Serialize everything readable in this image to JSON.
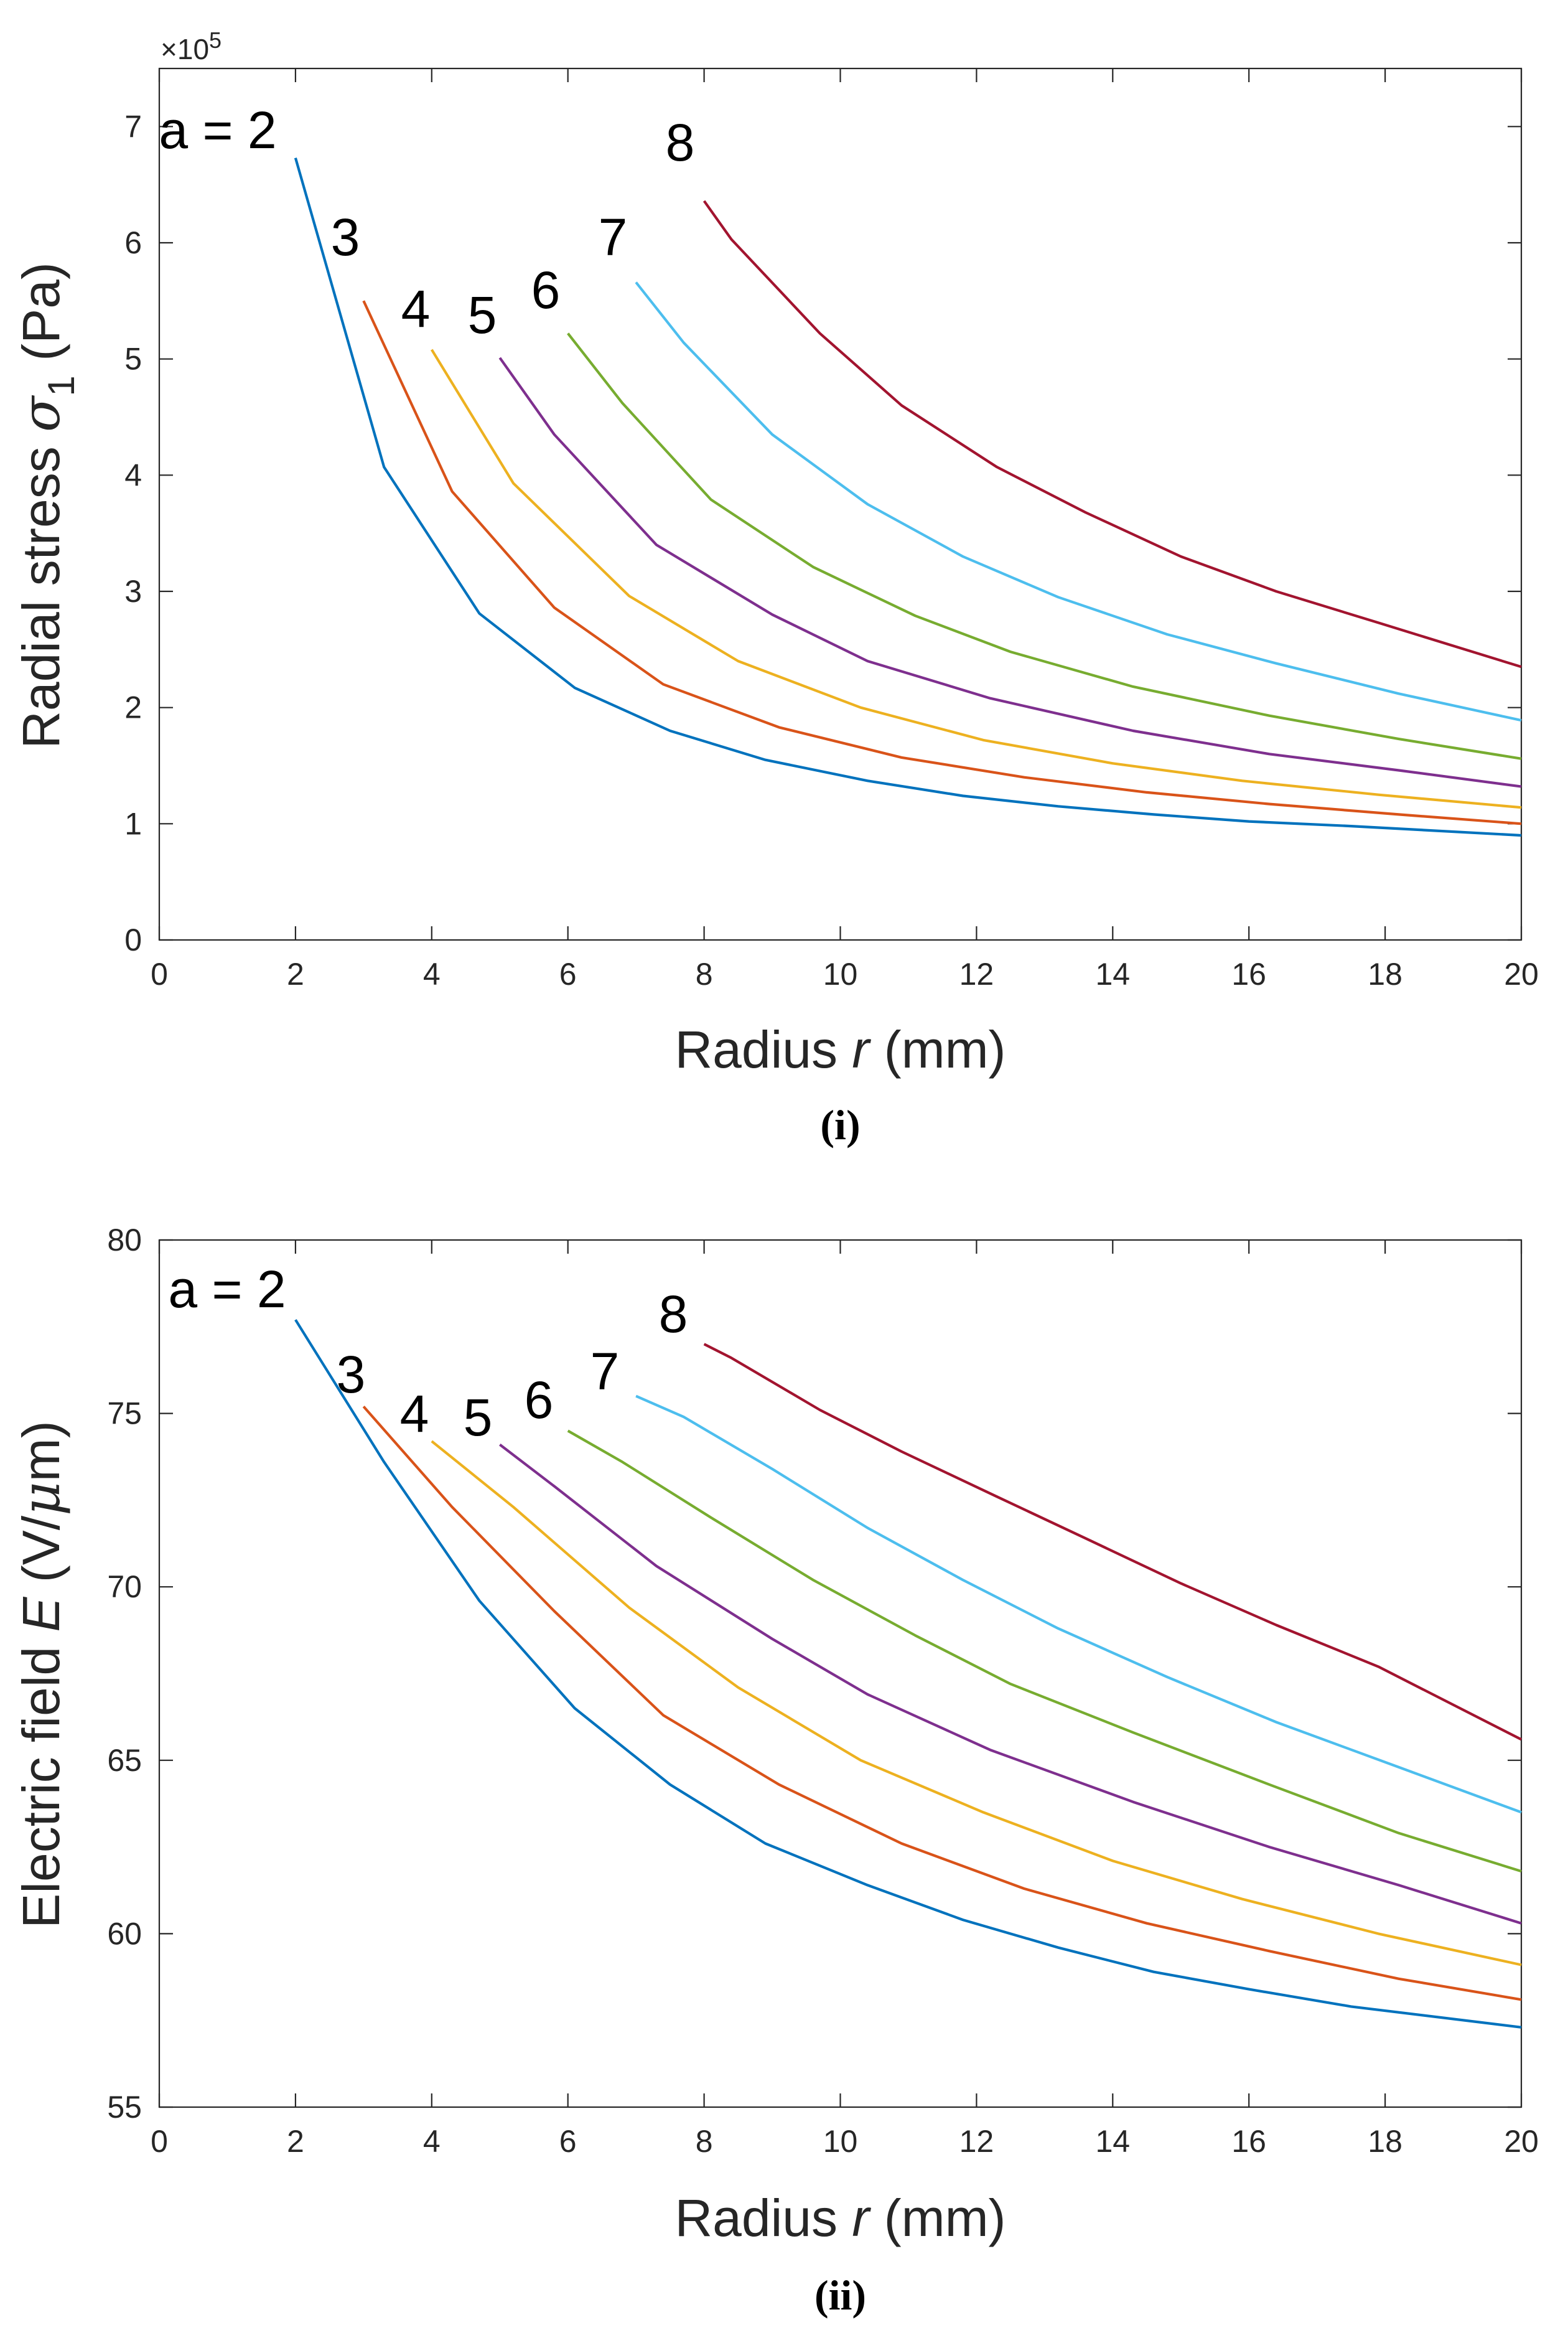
{
  "chart_data": [
    {
      "type": "line",
      "panel_label": "(i)",
      "xlabel": "Radius r (mm)",
      "xlabel_parts": [
        "Radius ",
        "r",
        " (mm)"
      ],
      "ylabel": "Radial stress σ1 (Pa)",
      "ylabel_parts": [
        "Radial stress ",
        "σ",
        "1",
        " (Pa)"
      ],
      "y_multiplier": "×10^5",
      "y_multiplier_parts": [
        "×10",
        "5"
      ],
      "xlim": [
        0,
        20
      ],
      "ylim": [
        0,
        7.5
      ],
      "xticks": [
        0,
        2,
        4,
        6,
        8,
        10,
        12,
        14,
        16,
        18,
        20
      ],
      "yticks": [
        0,
        1,
        2,
        3,
        4,
        5,
        6,
        7
      ],
      "grid": false,
      "series": [
        {
          "name": "a = 2",
          "label": "a = 2",
          "color": "#0072BD",
          "x": [
            2,
            3.3,
            4.7,
            6.1,
            7.5,
            8.9,
            10.4,
            11.8,
            13.2,
            14.6,
            16,
            17.5,
            20
          ],
          "y": [
            6.73,
            4.07,
            2.81,
            2.17,
            1.8,
            1.55,
            1.37,
            1.24,
            1.15,
            1.08,
            1.02,
            0.98,
            0.9
          ]
        },
        {
          "name": "3",
          "label": "3",
          "color": "#D95319",
          "x": [
            3,
            4.3,
            5.8,
            7.4,
            9.1,
            10.9,
            12.7,
            14.5,
            16.3,
            18.2,
            20
          ],
          "y": [
            5.5,
            3.86,
            2.86,
            2.2,
            1.83,
            1.57,
            1.4,
            1.27,
            1.17,
            1.08,
            1.0
          ]
        },
        {
          "name": "4",
          "label": "4",
          "color": "#EDB120",
          "x": [
            4,
            5.2,
            6.9,
            8.5,
            10.3,
            12.1,
            14,
            15.9,
            17.9,
            20
          ],
          "y": [
            5.08,
            3.93,
            2.96,
            2.4,
            2.0,
            1.72,
            1.52,
            1.37,
            1.25,
            1.14
          ]
        },
        {
          "name": "5",
          "label": "5",
          "color": "#7E2F8E",
          "x": [
            5,
            5.8,
            7.3,
            9.0,
            10.4,
            12.2,
            14.3,
            16.3,
            18.2,
            20
          ],
          "y": [
            5.01,
            4.35,
            3.4,
            2.8,
            2.4,
            2.08,
            1.8,
            1.6,
            1.46,
            1.32
          ]
        },
        {
          "name": "6",
          "label": "6",
          "color": "#77AC30",
          "x": [
            6,
            6.8,
            8.1,
            9.6,
            11.1,
            12.5,
            14.3,
            16.3,
            18.2,
            20
          ],
          "y": [
            5.22,
            4.62,
            3.79,
            3.21,
            2.79,
            2.48,
            2.18,
            1.93,
            1.73,
            1.56
          ]
        },
        {
          "name": "7",
          "label": "7",
          "color": "#4DBEEE",
          "x": [
            7,
            7.7,
            9.0,
            10.4,
            11.8,
            13.2,
            14.8,
            16.4,
            18.2,
            20
          ],
          "y": [
            5.66,
            5.14,
            4.35,
            3.75,
            3.3,
            2.95,
            2.63,
            2.38,
            2.12,
            1.89
          ]
        },
        {
          "name": "8",
          "label": "8",
          "color": "#A2142F",
          "x": [
            8,
            8.4,
            9.7,
            10.9,
            12.3,
            13.6,
            15.0,
            16.4,
            17.9,
            20
          ],
          "y": [
            6.36,
            6.03,
            5.22,
            4.6,
            4.07,
            3.68,
            3.3,
            3.0,
            2.73,
            2.35
          ]
        }
      ]
    },
    {
      "type": "line",
      "panel_label": "(ii)",
      "xlabel": "Radius r (mm)",
      "xlabel_parts": [
        "Radius ",
        "r",
        " (mm)"
      ],
      "ylabel": "Electric field E (V/μm)",
      "ylabel_parts": [
        "Electric field ",
        "E",
        " (V/",
        "μ",
        "m)"
      ],
      "xlim": [
        0,
        20
      ],
      "ylim": [
        55,
        80
      ],
      "xticks": [
        0,
        2,
        4,
        6,
        8,
        10,
        12,
        14,
        16,
        18,
        20
      ],
      "yticks": [
        55,
        60,
        65,
        70,
        75,
        80
      ],
      "grid": false,
      "series": [
        {
          "name": "a = 2",
          "label": "a = 2",
          "color": "#0072BD",
          "x": [
            2,
            3.3,
            4.7,
            6.1,
            7.5,
            8.9,
            10.4,
            11.8,
            13.2,
            14.6,
            16,
            17.5,
            20
          ],
          "y": [
            77.7,
            73.6,
            69.6,
            66.5,
            64.3,
            62.6,
            61.4,
            60.4,
            59.6,
            58.9,
            58.4,
            57.9,
            57.3
          ]
        },
        {
          "name": "3",
          "label": "3",
          "color": "#D95319",
          "x": [
            3,
            4.3,
            5.8,
            7.4,
            9.1,
            10.9,
            12.7,
            14.5,
            16.3,
            18.2,
            20
          ],
          "y": [
            75.2,
            72.3,
            69.3,
            66.3,
            64.3,
            62.6,
            61.3,
            60.3,
            59.5,
            58.7,
            58.1
          ]
        },
        {
          "name": "4",
          "label": "4",
          "color": "#EDB120",
          "x": [
            4,
            5.2,
            6.9,
            8.5,
            10.3,
            12.1,
            14,
            15.9,
            17.9,
            20
          ],
          "y": [
            74.2,
            72.3,
            69.4,
            67.1,
            65.0,
            63.5,
            62.1,
            61.0,
            60.0,
            59.1
          ]
        },
        {
          "name": "5",
          "label": "5",
          "color": "#7E2F8E",
          "x": [
            5,
            5.8,
            7.3,
            9.0,
            10.4,
            12.2,
            14.3,
            16.3,
            18.2,
            20
          ],
          "y": [
            74.1,
            72.9,
            70.6,
            68.5,
            66.9,
            65.3,
            63.8,
            62.5,
            61.4,
            60.3
          ]
        },
        {
          "name": "6",
          "label": "6",
          "color": "#77AC30",
          "x": [
            6,
            6.8,
            8.1,
            9.6,
            11.1,
            12.5,
            14.3,
            16.3,
            18.2,
            20
          ],
          "y": [
            74.5,
            73.6,
            72.0,
            70.2,
            68.6,
            67.2,
            65.8,
            64.3,
            62.9,
            61.8
          ]
        },
        {
          "name": "7",
          "label": "7",
          "color": "#4DBEEE",
          "x": [
            7,
            7.7,
            9.0,
            10.4,
            11.8,
            13.2,
            14.8,
            16.4,
            18.2,
            20
          ],
          "y": [
            75.5,
            74.9,
            73.4,
            71.7,
            70.2,
            68.8,
            67.4,
            66.1,
            64.8,
            63.5
          ]
        },
        {
          "name": "8",
          "label": "8",
          "color": "#A2142F",
          "x": [
            8,
            8.4,
            9.7,
            10.9,
            12.3,
            13.6,
            15.0,
            16.4,
            17.9,
            20
          ],
          "y": [
            77.0,
            76.6,
            75.1,
            73.9,
            72.6,
            71.4,
            70.1,
            68.9,
            67.7,
            65.6
          ]
        }
      ]
    }
  ]
}
